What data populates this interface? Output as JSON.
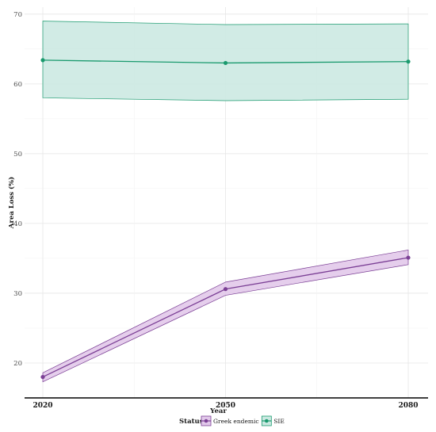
{
  "chart_data": {
    "type": "line",
    "xlabel": "Year",
    "ylabel": "Area Loss (%)",
    "x": [
      2020,
      2050,
      2080
    ],
    "xlim": [
      2020,
      2080
    ],
    "ylim": [
      15,
      71
    ],
    "yticks": [
      20,
      30,
      40,
      50,
      60,
      70
    ],
    "legend": {
      "title": "Status",
      "position": "bottom"
    },
    "grid": true,
    "series": [
      {
        "name": "Greek endemic",
        "color": "#7b3f95",
        "fill": "#e2c9ea",
        "values": [
          18.0,
          30.6,
          35.1
        ],
        "lower": [
          17.3,
          29.7,
          34.1
        ],
        "upper": [
          18.6,
          31.6,
          36.2
        ]
      },
      {
        "name": "SIE",
        "color": "#1a9a6e",
        "fill": "#cce9e2",
        "values": [
          63.4,
          63.0,
          63.2
        ],
        "lower": [
          58.0,
          57.6,
          57.8
        ],
        "upper": [
          69.0,
          68.5,
          68.6
        ]
      }
    ]
  }
}
